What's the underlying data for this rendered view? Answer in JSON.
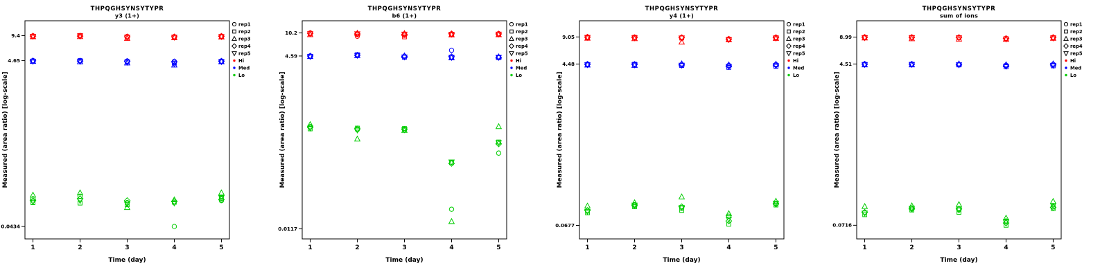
{
  "figure": {
    "background": "#ffffff",
    "text_color": "#000000"
  },
  "chart_data": [
    {
      "type": "scatter",
      "title": "THPQGHSYNSYTYPR",
      "subtitle": "y3 (1+)",
      "xlabel": "Time (day)",
      "ylabel": "Measured (area ratio) [log-scale]",
      "x_scale": "linear",
      "y_scale": "log",
      "x_ticks": [
        "1",
        "2",
        "3",
        "4",
        "5"
      ],
      "y_ticks": [
        "9.4",
        "4.65",
        "0.0434"
      ],
      "legend": {
        "position": "right",
        "reps": [
          {
            "label": "rep1",
            "symbol": "circle"
          },
          {
            "label": "rep2",
            "symbol": "square"
          },
          {
            "label": "rep3",
            "symbol": "triangle-up"
          },
          {
            "label": "rep4",
            "symbol": "diamond"
          },
          {
            "label": "rep5",
            "symbol": "triangle-down"
          }
        ],
        "groups": [
          {
            "label": "Hi",
            "color": "#FF0000"
          },
          {
            "label": "Med",
            "color": "#0000FF"
          },
          {
            "label": "Lo",
            "color": "#00CC00"
          }
        ]
      },
      "series": [
        {
          "name": "Hi",
          "color": "#FF0000",
          "days": [
            [
              9.35,
              9.2,
              9.1,
              9.3,
              9.25
            ],
            [
              9.4,
              9.45,
              9.15,
              9.3,
              9.35
            ],
            [
              9.2,
              8.95,
              8.7,
              9.1,
              9.0
            ],
            [
              9.15,
              9.05,
              8.85,
              9.1,
              9.0
            ],
            [
              9.3,
              9.2,
              9.05,
              9.25,
              9.15
            ]
          ]
        },
        {
          "name": "Med",
          "color": "#0000FF",
          "days": [
            [
              4.65,
              4.6,
              4.55,
              4.62,
              4.58
            ],
            [
              4.62,
              4.66,
              4.5,
              4.6,
              4.56
            ],
            [
              4.6,
              4.5,
              4.35,
              4.55,
              4.45
            ],
            [
              4.55,
              4.35,
              4.1,
              4.5,
              4.25
            ],
            [
              4.6,
              4.55,
              4.5,
              4.58,
              4.52
            ]
          ]
        },
        {
          "name": "Lo",
          "color": "#00CC00",
          "days": [
            [
              0.095,
              0.085,
              0.105,
              0.09,
              0.088
            ],
            [
              0.102,
              0.084,
              0.112,
              0.095,
              0.09
            ],
            [
              0.085,
              0.08,
              0.074,
              0.09,
              0.082
            ],
            [
              0.0434,
              0.086,
              0.092,
              0.088,
              0.084
            ],
            [
              0.09,
              0.096,
              0.112,
              0.093,
              0.098
            ]
          ]
        }
      ]
    },
    {
      "type": "scatter",
      "title": "THPQGHSYNSYTYPR",
      "subtitle": "b6 (1+)",
      "xlabel": "Time (day)",
      "ylabel": "Measured (area ratio) [log-scale]",
      "x_scale": "linear",
      "y_scale": "log",
      "x_ticks": [
        "1",
        "2",
        "3",
        "4",
        "5"
      ],
      "y_ticks": [
        "10.2",
        "4.59",
        "0.0117"
      ],
      "legend": {
        "position": "right",
        "reps": [
          {
            "label": "rep1",
            "symbol": "circle"
          },
          {
            "label": "rep2",
            "symbol": "square"
          },
          {
            "label": "rep3",
            "symbol": "triangle-up"
          },
          {
            "label": "rep4",
            "symbol": "diamond"
          },
          {
            "label": "rep5",
            "symbol": "triangle-down"
          }
        ],
        "groups": [
          {
            "label": "Hi",
            "color": "#FF0000"
          },
          {
            "label": "Med",
            "color": "#0000FF"
          },
          {
            "label": "Lo",
            "color": "#00CC00"
          }
        ]
      },
      "series": [
        {
          "name": "Hi",
          "color": "#FF0000",
          "days": [
            [
              10.2,
              9.9,
              9.6,
              10.05,
              9.95
            ],
            [
              9.1,
              9.6,
              10.1,
              9.85,
              9.9
            ],
            [
              9.4,
              8.9,
              10.0,
              9.7,
              9.8
            ],
            [
              9.85,
              9.65,
              9.5,
              9.9,
              9.75
            ],
            [
              9.95,
              9.75,
              9.55,
              9.85,
              9.8
            ]
          ]
        },
        {
          "name": "Med",
          "color": "#0000FF",
          "days": [
            [
              4.6,
              4.55,
              4.5,
              4.59,
              4.52
            ],
            [
              4.75,
              4.8,
              4.65,
              4.72,
              4.7
            ],
            [
              4.55,
              4.4,
              4.62,
              4.5,
              4.45
            ],
            [
              5.6,
              4.42,
              4.3,
              4.48,
              4.38
            ],
            [
              4.4,
              4.35,
              4.46,
              4.38,
              4.42
            ]
          ]
        },
        {
          "name": "Lo",
          "color": "#00CC00",
          "days": [
            [
              0.4,
              0.37,
              0.43,
              0.39,
              0.38
            ],
            [
              0.36,
              0.38,
              0.26,
              0.37,
              0.355
            ],
            [
              0.36,
              0.375,
              0.35,
              0.365,
              0.358
            ],
            [
              0.023,
              0.115,
              0.015,
              0.112,
              0.118
            ],
            [
              0.16,
              0.235,
              0.4,
              0.22,
              0.23
            ]
          ]
        }
      ]
    },
    {
      "type": "scatter",
      "title": "THPQGHSYNSYTYPR",
      "subtitle": "y4 (1+)",
      "xlabel": "Time (day)",
      "ylabel": "Measured (area ratio) [log-scale]",
      "x_scale": "linear",
      "y_scale": "log",
      "x_ticks": [
        "1",
        "2",
        "3",
        "4",
        "5"
      ],
      "y_ticks": [
        "9.05",
        "4.48",
        "0.0677"
      ],
      "legend": {
        "position": "right",
        "reps": [
          {
            "label": "rep1",
            "symbol": "circle"
          },
          {
            "label": "rep2",
            "symbol": "square"
          },
          {
            "label": "rep3",
            "symbol": "triangle-up"
          },
          {
            "label": "rep4",
            "symbol": "diamond"
          },
          {
            "label": "rep5",
            "symbol": "triangle-down"
          }
        ],
        "groups": [
          {
            "label": "Hi",
            "color": "#FF0000"
          },
          {
            "label": "Med",
            "color": "#0000FF"
          },
          {
            "label": "Lo",
            "color": "#00CC00"
          }
        ]
      },
      "series": [
        {
          "name": "Hi",
          "color": "#FF0000",
          "days": [
            [
              9.05,
              8.9,
              8.75,
              9.0,
              8.95
            ],
            [
              9.0,
              8.95,
              8.65,
              8.9,
              8.85
            ],
            [
              8.95,
              8.8,
              7.9,
              8.88,
              8.82
            ],
            [
              8.6,
              8.5,
              8.4,
              8.55,
              8.45
            ],
            [
              8.95,
              8.85,
              8.7,
              8.9,
              8.8
            ]
          ]
        },
        {
          "name": "Med",
          "color": "#0000FF",
          "days": [
            [
              4.48,
              4.42,
              4.36,
              4.45,
              4.4
            ],
            [
              4.42,
              4.46,
              4.32,
              4.44,
              4.38
            ],
            [
              4.42,
              4.3,
              4.5,
              4.4,
              4.35
            ],
            [
              4.32,
              4.1,
              4.38,
              4.26,
              4.2
            ],
            [
              4.42,
              4.22,
              4.46,
              4.36,
              4.3
            ]
          ]
        },
        {
          "name": "Lo",
          "color": "#00CC00",
          "days": [
            [
              0.1,
              0.094,
              0.112,
              0.1,
              0.097
            ],
            [
              0.116,
              0.11,
              0.122,
              0.113,
              0.115
            ],
            [
              0.106,
              0.1,
              0.142,
              0.11,
              0.108
            ],
            [
              0.086,
              0.07,
              0.092,
              0.076,
              0.08
            ],
            [
              0.12,
              0.115,
              0.127,
              0.118,
              0.121
            ]
          ]
        }
      ]
    },
    {
      "type": "scatter",
      "title": "THPQGHSYNSYTYPR",
      "subtitle": "sum of ions",
      "xlabel": "Time (day)",
      "ylabel": "Measured (area ratio) [log-scale]",
      "x_scale": "linear",
      "y_scale": "log",
      "x_ticks": [
        "1",
        "2",
        "3",
        "4",
        "5"
      ],
      "y_ticks": [
        "8.99",
        "4.51",
        "0.0716"
      ],
      "legend": {
        "position": "right",
        "reps": [
          {
            "label": "rep1",
            "symbol": "circle"
          },
          {
            "label": "rep2",
            "symbol": "square"
          },
          {
            "label": "rep3",
            "symbol": "triangle-up"
          },
          {
            "label": "rep4",
            "symbol": "diamond"
          },
          {
            "label": "rep5",
            "symbol": "triangle-down"
          }
        ],
        "groups": [
          {
            "label": "Hi",
            "color": "#FF0000"
          },
          {
            "label": "Med",
            "color": "#0000FF"
          },
          {
            "label": "Lo",
            "color": "#00CC00"
          }
        ]
      },
      "series": [
        {
          "name": "Hi",
          "color": "#FF0000",
          "days": [
            [
              8.99,
              8.9,
              8.8,
              8.95,
              8.87
            ],
            [
              8.95,
              8.9,
              8.62,
              8.92,
              8.88
            ],
            [
              8.92,
              8.86,
              8.55,
              8.9,
              8.82
            ],
            [
              8.72,
              8.62,
              8.5,
              8.68,
              8.58
            ],
            [
              8.92,
              8.86,
              8.72,
              8.9,
              8.8
            ]
          ]
        },
        {
          "name": "Med",
          "color": "#0000FF",
          "days": [
            [
              4.51,
              4.46,
              4.4,
              4.49,
              4.45
            ],
            [
              4.5,
              4.48,
              4.4,
              4.49,
              4.46
            ],
            [
              4.46,
              4.4,
              4.52,
              4.44,
              4.42
            ],
            [
              4.36,
              4.2,
              4.42,
              4.3,
              4.26
            ],
            [
              4.46,
              4.3,
              4.52,
              4.42,
              4.36
            ]
          ]
        },
        {
          "name": "Lo",
          "color": "#00CC00",
          "days": [
            [
              0.1,
              0.094,
              0.116,
              0.1,
              0.098
            ],
            [
              0.112,
              0.106,
              0.118,
              0.109,
              0.111
            ],
            [
              0.106,
              0.1,
              0.122,
              0.109,
              0.107
            ],
            [
              0.08,
              0.0716,
              0.086,
              0.076,
              0.079
            ],
            [
              0.116,
              0.11,
              0.132,
              0.113,
              0.119
            ]
          ]
        }
      ]
    }
  ]
}
